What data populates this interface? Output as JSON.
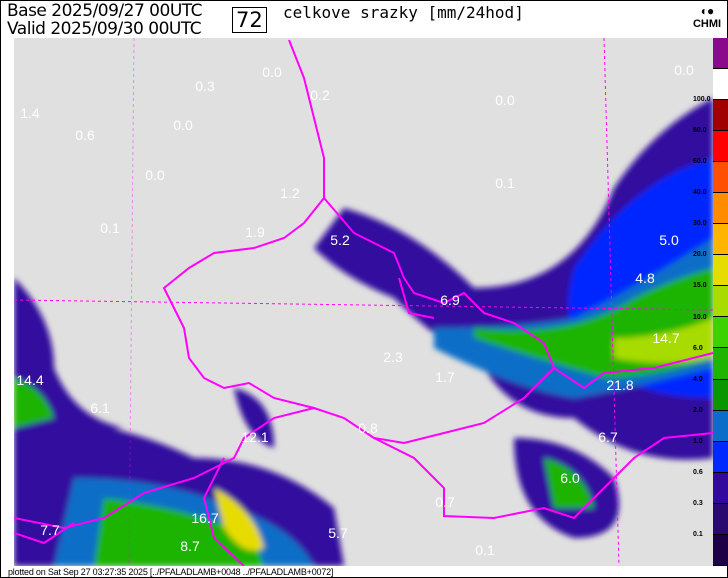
{
  "header": {
    "base_label": "Base 2025/09/27 00UTC",
    "valid_label": "Valid 2025/09/30 00UTC",
    "forecast_hour": "72",
    "title": "celkove srazky [mm/24hod]",
    "logo_text": "CHMI",
    "logo_icon": "chmi-logo-icon"
  },
  "legend": {
    "colors": [
      "#8b0a8b",
      "#ffffff",
      "#a00000",
      "#ff0000",
      "#ff5000",
      "#ff8c00",
      "#ffb400",
      "#e6dc00",
      "#a8dc00",
      "#3cd200",
      "#1eb400",
      "#0a9600",
      "#0a6ec8",
      "#0028ff",
      "#32089e",
      "#2a0a6e",
      "#1e0046"
    ],
    "labels": [
      "100.0",
      "80.0",
      "60.0",
      "40.0",
      "30.0",
      "20.0",
      "15.0",
      "10.0",
      "6.0",
      "4.0",
      "2.0",
      "1.0",
      "0.6",
      "0.3",
      "0.1"
    ]
  },
  "map": {
    "border_color": "#ff00ff",
    "values": [
      "0.0",
      "0.2",
      "0.0",
      "0.3",
      "1.4",
      "0.6",
      "0.0",
      "0.0",
      "0.1",
      "1.2",
      "0.1",
      "1.9",
      "5.2",
      "5.0",
      "4.8",
      "6.9",
      "14.7",
      "2.3",
      "1.7",
      "14.4",
      "21.8",
      "6.1",
      "12.1",
      "0.8",
      "6.7",
      "6.0",
      "16.7",
      "7.7",
      "5.7",
      "0.7",
      "8.7",
      "0.1",
      "0.0"
    ]
  },
  "footer": {
    "text": "plotted on Sat Sep 27 03:27:35 2025 [../PFALADLAMB+0048 ../PFALADLAMB+0072]"
  }
}
